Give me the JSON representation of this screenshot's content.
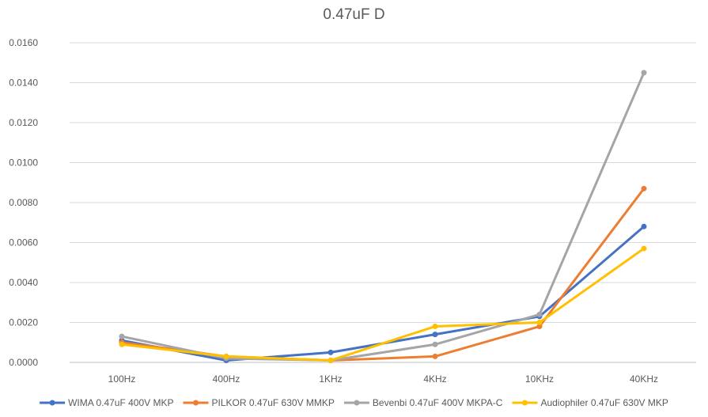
{
  "chart_data": {
    "type": "line",
    "title": "0.47uF D",
    "xlabel": "",
    "ylabel": "",
    "categories": [
      "100Hz",
      "400Hz",
      "1KHz",
      "4KHz",
      "10KHz",
      "40KHz"
    ],
    "ylim": [
      0,
      0.016
    ],
    "yticks": [
      "0.0000",
      "0.0020",
      "0.0040",
      "0.0060",
      "0.0080",
      "0.0100",
      "0.0120",
      "0.0140",
      "0.0160"
    ],
    "grid": true,
    "legend_position": "bottom",
    "series": [
      {
        "name": "WIMA 0.47uF 400V MKP",
        "color": "#4472c4",
        "values": [
          0.0011,
          0.0001,
          0.0005,
          0.0014,
          0.0023,
          0.0068
        ]
      },
      {
        "name": "PILKOR 0.47uF 630V MMKP",
        "color": "#ed7d31",
        "values": [
          0.001,
          0.0003,
          0.0001,
          0.0003,
          0.0018,
          0.0087
        ]
      },
      {
        "name": "Bevenbi 0.47uF 400V MKPA-C",
        "color": "#a5a5a5",
        "values": [
          0.0013,
          0.0002,
          0.0001,
          0.0009,
          0.0024,
          0.0145
        ]
      },
      {
        "name": "Audiophiler 0.47uF 630V MKP",
        "color": "#ffc000",
        "values": [
          0.0009,
          0.0003,
          0.0001,
          0.0018,
          0.002,
          0.0057
        ]
      }
    ]
  }
}
